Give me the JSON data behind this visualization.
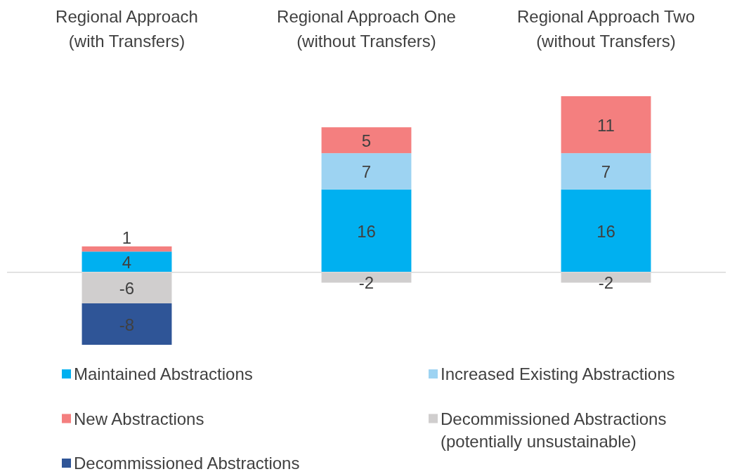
{
  "chart_data": {
    "type": "bar",
    "stacked": true,
    "categories": [
      "Regional Approach\n(with Transfers)",
      "Regional Approach One\n(without Transfers)",
      "Regional Approach Two\n(without Transfers)"
    ],
    "series": [
      {
        "name": "Maintained Abstractions",
        "color": "#00b0f0",
        "values": [
          4,
          16,
          16
        ]
      },
      {
        "name": "Increased Existing Abstractions",
        "color": "#9dd3f2",
        "values": [
          null,
          7,
          7
        ]
      },
      {
        "name": "New Abstractions",
        "color": "#f47f7f",
        "values": [
          1,
          5,
          11
        ]
      },
      {
        "name": "Decommissioned Abstractions\n(potentially unsustainable)",
        "color": "#d0cece",
        "values": [
          -6,
          -2,
          -2
        ]
      },
      {
        "name": "Decommissioned Abstractions",
        "color": "#2f5597",
        "values": [
          -8,
          null,
          null
        ]
      }
    ],
    "data_labels": true,
    "legend": "bottom",
    "grid": false
  }
}
